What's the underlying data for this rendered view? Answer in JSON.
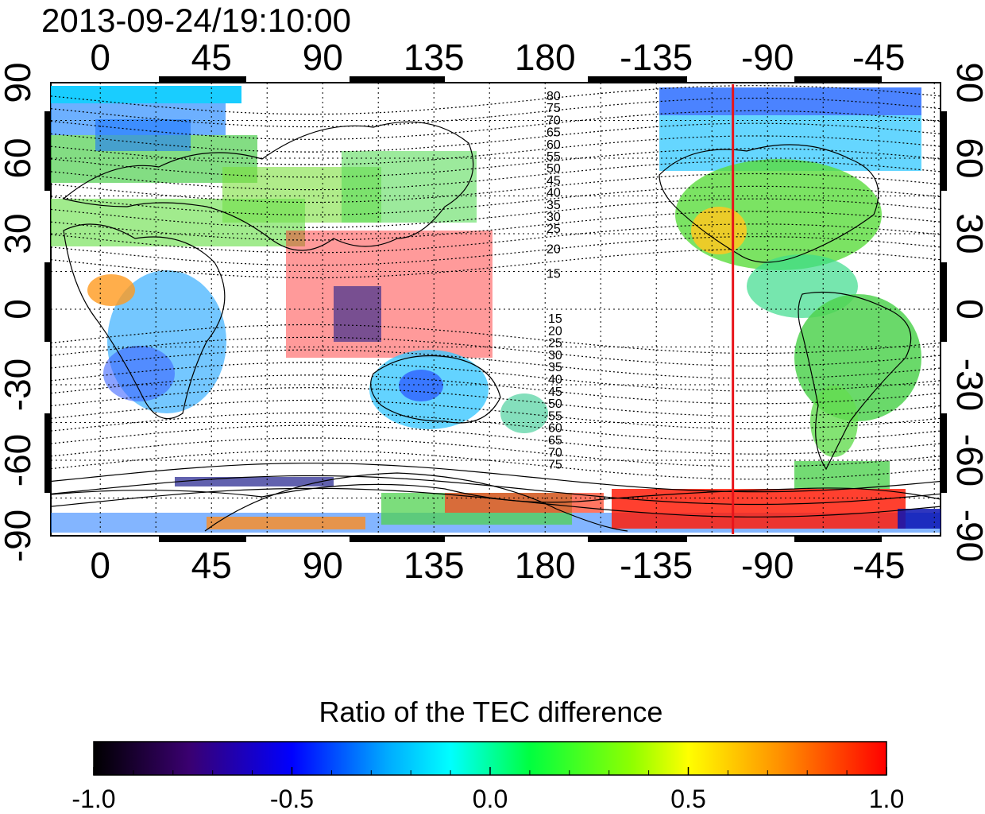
{
  "timestamp": "2013-09-24/19:10:00",
  "map": {
    "top_longitude_labels": [
      "0",
      "45",
      "90",
      "135",
      "180",
      "-135",
      "-90",
      "-45"
    ],
    "bottom_longitude_labels": [
      "0",
      "45",
      "90",
      "135",
      "180",
      "-135",
      "-90",
      "-45"
    ],
    "left_latitude_labels": [
      "90",
      "60",
      "30",
      "0",
      "-30",
      "-60",
      "-90"
    ],
    "right_latitude_labels": [
      "90",
      "60",
      "30",
      "0",
      "-30",
      "-60",
      "-90"
    ],
    "red_marker_longitude": -104,
    "magnetic_latitude_labels_north": [
      "80",
      "75",
      "70",
      "65",
      "60",
      "55",
      "50",
      "45",
      "40",
      "35",
      "30",
      "25",
      "20",
      "15"
    ],
    "magnetic_latitude_labels_south": [
      "15",
      "20",
      "25",
      "30",
      "35",
      "40",
      "45",
      "50",
      "55",
      "60",
      "65",
      "70",
      "75"
    ],
    "colors": {
      "marker": "#e8141a",
      "grid": "#000000"
    }
  },
  "colorbar": {
    "title": "Ratio of the TEC difference",
    "tick_labels": [
      "-1.0",
      "-0.5",
      "0.0",
      "0.5",
      "1.0"
    ],
    "range": [
      -1.0,
      1.0
    ],
    "colormap": [
      "#000000",
      "#4b0082",
      "#0000ff",
      "#00ffff",
      "#00ff00",
      "#ffff00",
      "#ff8c00",
      "#ff0000"
    ]
  }
}
